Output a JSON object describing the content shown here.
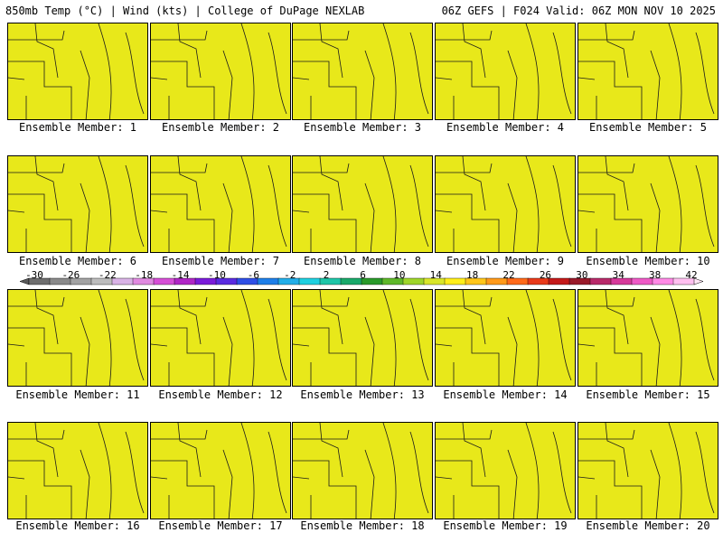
{
  "header": {
    "left": "850mb Temp (°C) | Wind (kts) | College of DuPage NEXLAB",
    "right": "06Z GEFS | F024 Valid: 06Z MON NOV 10 2025"
  },
  "members": [
    "Ensemble Member: 1",
    "Ensemble Member: 2",
    "Ensemble Member: 3",
    "Ensemble Member: 4",
    "Ensemble Member: 5",
    "Ensemble Member: 6",
    "Ensemble Member: 7",
    "Ensemble Member: 8",
    "Ensemble Member: 9",
    "Ensemble Member: 10",
    "Ensemble Member: 11",
    "Ensemble Member: 12",
    "Ensemble Member: 13",
    "Ensemble Member: 14",
    "Ensemble Member: 15",
    "Ensemble Member: 16",
    "Ensemble Member: 17",
    "Ensemble Member: 18",
    "Ensemble Member: 19",
    "Ensemble Member: 20"
  ],
  "colorbar": {
    "ticks": [
      "-30",
      "-26",
      "-22",
      "-18",
      "-14",
      "-10",
      "-6",
      "-2",
      "2",
      "6",
      "10",
      "14",
      "18",
      "22",
      "26",
      "30",
      "34",
      "38",
      "42"
    ],
    "colors": [
      "#6e6e6e",
      "#8a8a8a",
      "#a3a3a3",
      "#bdbdbd",
      "#d9b3e6",
      "#e08ae0",
      "#d64fd6",
      "#b026c6",
      "#7a1bd9",
      "#5a2be0",
      "#2f4fe6",
      "#1e7fe8",
      "#22aee8",
      "#1fd0e0",
      "#1fc6a8",
      "#1aa96a",
      "#2a9a2a",
      "#5fb82a",
      "#9fd62a",
      "#d9e62a",
      "#ffee1a",
      "#ffc61a",
      "#ff9a1a",
      "#ff6a1a",
      "#e83a1a",
      "#c41a1a",
      "#9a1a2a",
      "#b82a6a",
      "#d63a9a",
      "#ee5ac6",
      "#ff8ae6",
      "#ffc0f0"
    ]
  },
  "map_colors": [
    "#e8e81a",
    "#a8d62a",
    "#4fa83a",
    "#2a9a5a",
    "#22c0a8",
    "#22d2e6",
    "#1e96ee",
    "#2a4ee0",
    "#5a2ae0",
    "#9a1ee0",
    "#d21ee6",
    "#ff1aff"
  ]
}
